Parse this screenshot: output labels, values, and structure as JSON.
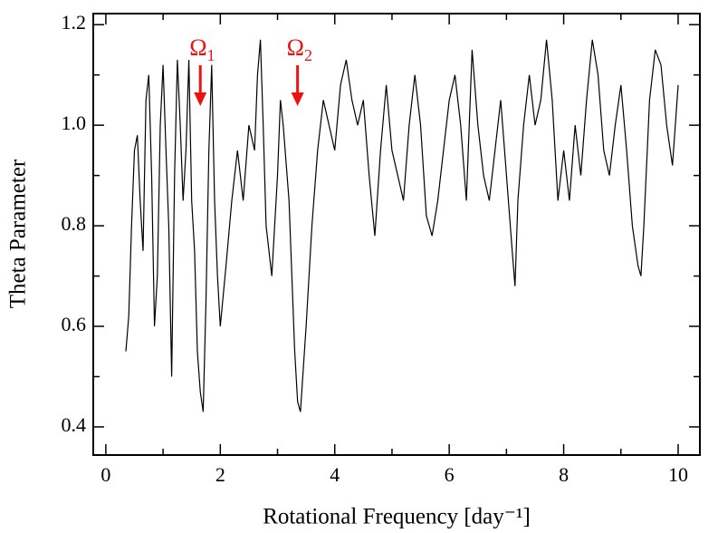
{
  "chart_data": {
    "type": "line",
    "x_label": "Rotational Frequency [day⁻¹]",
    "y_label": "Theta Parameter",
    "color": "#000000",
    "annotation_color": "#ee1111",
    "annotations": [
      {
        "text": "Ω",
        "subscript": "1",
        "x": 1.65
      },
      {
        "text": "Ω",
        "subscript": "2",
        "x": 3.35
      }
    ],
    "x": [
      0.35,
      0.4,
      0.45,
      0.5,
      0.55,
      0.6,
      0.65,
      0.7,
      0.75,
      0.8,
      0.85,
      0.9,
      0.95,
      1.0,
      1.05,
      1.1,
      1.15,
      1.2,
      1.25,
      1.3,
      1.35,
      1.4,
      1.45,
      1.5,
      1.55,
      1.6,
      1.65,
      1.7,
      1.75,
      1.8,
      1.85,
      1.9,
      1.95,
      2.0,
      2.1,
      2.2,
      2.3,
      2.4,
      2.5,
      2.6,
      2.65,
      2.7,
      2.75,
      2.8,
      2.9,
      3.0,
      3.05,
      3.1,
      3.2,
      3.3,
      3.35,
      3.4,
      3.5,
      3.6,
      3.7,
      3.8,
      3.9,
      4.0,
      4.1,
      4.2,
      4.3,
      4.4,
      4.5,
      4.6,
      4.7,
      4.8,
      4.9,
      5.0,
      5.1,
      5.2,
      5.3,
      5.4,
      5.5,
      5.6,
      5.7,
      5.8,
      5.9,
      6.0,
      6.1,
      6.2,
      6.3,
      6.4,
      6.5,
      6.6,
      6.7,
      6.8,
      6.9,
      7.0,
      7.1,
      7.15,
      7.2,
      7.3,
      7.4,
      7.5,
      7.6,
      7.7,
      7.8,
      7.9,
      8.0,
      8.1,
      8.2,
      8.3,
      8.4,
      8.5,
      8.6,
      8.7,
      8.8,
      8.9,
      9.0,
      9.1,
      9.2,
      9.3,
      9.35,
      9.4,
      9.5,
      9.6,
      9.7,
      9.8,
      9.9,
      10.0
    ],
    "values": [
      0.55,
      0.62,
      0.8,
      0.95,
      0.98,
      0.85,
      0.75,
      1.05,
      1.1,
      0.9,
      0.6,
      0.7,
      1.0,
      1.12,
      0.95,
      0.8,
      0.5,
      0.9,
      1.13,
      1.0,
      0.85,
      0.95,
      1.13,
      0.85,
      0.75,
      0.55,
      0.47,
      0.43,
      0.65,
      0.95,
      1.12,
      0.85,
      0.7,
      0.6,
      0.72,
      0.85,
      0.95,
      0.85,
      1.0,
      0.95,
      1.1,
      1.17,
      1.0,
      0.8,
      0.7,
      0.9,
      1.05,
      1.0,
      0.85,
      0.55,
      0.45,
      0.43,
      0.6,
      0.8,
      0.95,
      1.05,
      1.0,
      0.95,
      1.08,
      1.13,
      1.05,
      1.0,
      1.05,
      0.9,
      0.78,
      0.95,
      1.08,
      0.95,
      0.9,
      0.85,
      1.0,
      1.1,
      1.0,
      0.82,
      0.78,
      0.85,
      0.95,
      1.05,
      1.1,
      1.0,
      0.85,
      1.15,
      1.0,
      0.9,
      0.85,
      0.95,
      1.05,
      0.9,
      0.75,
      0.68,
      0.85,
      1.0,
      1.1,
      1.0,
      1.05,
      1.17,
      1.05,
      0.85,
      0.95,
      0.85,
      1.0,
      0.9,
      1.05,
      1.17,
      1.1,
      0.95,
      0.9,
      1.0,
      1.08,
      0.95,
      0.8,
      0.72,
      0.7,
      0.8,
      1.05,
      1.15,
      1.12,
      1.0,
      0.92,
      1.08
    ],
    "xlim": [
      -0.22,
      10.38
    ],
    "ylim": [
      0.344,
      1.222
    ],
    "xticks": [
      0,
      2,
      4,
      6,
      8,
      10
    ],
    "minor_xticks": [
      1,
      3,
      5,
      7,
      9
    ],
    "yticks": [
      {
        "value": 0.4,
        "label": "0.4"
      },
      {
        "value": 0.6,
        "label": "0.6"
      },
      {
        "value": 0.8,
        "label": "0.8"
      },
      {
        "value": 1.0,
        "label": "1.0"
      },
      {
        "value": 1.2,
        "label": "1.2"
      }
    ],
    "minor_yticks": [
      0.5,
      0.7,
      0.9,
      1.1
    ]
  }
}
